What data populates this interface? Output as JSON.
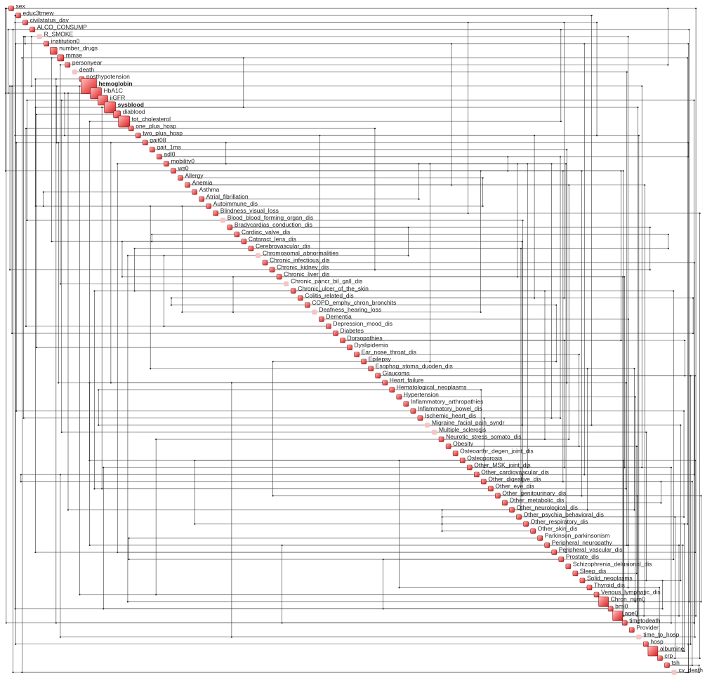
{
  "nodes": [
    {
      "label": "sex"
    },
    {
      "label": "educ3trnew"
    },
    {
      "label": "civilstatus_dav"
    },
    {
      "label": "ALCO_CONSUMP"
    },
    {
      "label": "R_SMOKE"
    },
    {
      "label": "institution0"
    },
    {
      "label": "number_drugs"
    },
    {
      "label": "mmse"
    },
    {
      "label": "personyear"
    },
    {
      "label": "death"
    },
    {
      "label": "posthypotension"
    },
    {
      "label": "hemoglobin"
    },
    {
      "label": "HbA1C"
    },
    {
      "label": "iiGFR"
    },
    {
      "label": "sysblood"
    },
    {
      "label": "diablood"
    },
    {
      "label": "tot_cholesterol"
    },
    {
      "label": "one_plus_hosp"
    },
    {
      "label": "two_plus_hosp"
    },
    {
      "label": "gait08"
    },
    {
      "label": "gait_1ms"
    },
    {
      "label": "adl0"
    },
    {
      "label": "mobility0"
    },
    {
      "label": "ws0"
    },
    {
      "label": "Allergy"
    },
    {
      "label": "Anemia"
    },
    {
      "label": "Asthma"
    },
    {
      "label": "Atrial_fibrillation"
    },
    {
      "label": "Autoimmune_dis"
    },
    {
      "label": "Blindness_visual_loss"
    },
    {
      "label": "Blood_blood_forming_organ_dis"
    },
    {
      "label": "Bradycardias_conduction_dis"
    },
    {
      "label": "Cardiac_valve_dis"
    },
    {
      "label": "Cataract_lens_dis"
    },
    {
      "label": "Cerebrovascular_dis"
    },
    {
      "label": "Chromosomal_abnormalities"
    },
    {
      "label": "Chronic_infectious_dis"
    },
    {
      "label": "Chronic_kidney_dis"
    },
    {
      "label": "Chronic_liver_dis"
    },
    {
      "label": "Chronic_pancr_bil_gall_dis"
    },
    {
      "label": "Chronic_ulcer_of_the_skin"
    },
    {
      "label": "Colitis_related_dis"
    },
    {
      "label": "COPD_emphy_chron_bronchits"
    },
    {
      "label": "Deafness_hearing_loss"
    },
    {
      "label": "Dementia"
    },
    {
      "label": "Depression_mood_dis"
    },
    {
      "label": "Diabetes"
    },
    {
      "label": "Dorsopathies"
    },
    {
      "label": "Dyslipidemia"
    },
    {
      "label": "Ear_nose_throat_dis"
    },
    {
      "label": "Epilepsy"
    },
    {
      "label": "Esophag_stoma_duoden_dis"
    },
    {
      "label": "Glaucoma"
    },
    {
      "label": "Heart_failure"
    },
    {
      "label": "Hematological_neoplasms"
    },
    {
      "label": "Hypertension"
    },
    {
      "label": "Inflammatory_arthropathies"
    },
    {
      "label": "Inflammatory_bowel_dis"
    },
    {
      "label": "Ischemic_heart_dis"
    },
    {
      "label": "Migraine_facial_pain_syndr"
    },
    {
      "label": "Multiple_sclerosis"
    },
    {
      "label": "Neurotic_stress_somato_dis"
    },
    {
      "label": "Obesity"
    },
    {
      "label": "Osteoarthr_degen_joint_dis"
    },
    {
      "label": "Osteoporosis"
    },
    {
      "label": "Other_MSK_joint_dis"
    },
    {
      "label": "Other_cardiovascular_dis"
    },
    {
      "label": "Other_digestive_dis"
    },
    {
      "label": "Other_eye_dis"
    },
    {
      "label": "Other_genitourinary_dis"
    },
    {
      "label": "Other_metabolic_dis"
    },
    {
      "label": "Other_neurological_dis"
    },
    {
      "label": "Other_psychia_behavioral_dis"
    },
    {
      "label": "Other_respiratory_dis"
    },
    {
      "label": "Other_skin_dis"
    },
    {
      "label": "Parkinson_parkinsonism"
    },
    {
      "label": "Peripheral_neuropathy"
    },
    {
      "label": "Peripheral_vascular_dis"
    },
    {
      "label": "Prostate_dis"
    },
    {
      "label": "Schizophrenia_delusional_dis"
    },
    {
      "label": "Sleep_dis"
    },
    {
      "label": "Solid_neoplasms"
    },
    {
      "label": "Thyroid_dis"
    },
    {
      "label": "Venous_lymphatic_dis"
    },
    {
      "label": "Chron_num0"
    },
    {
      "label": "bmi0"
    },
    {
      "label": "age0"
    },
    {
      "label": "timetodeath"
    },
    {
      "label": "Provider"
    },
    {
      "label": "time_to_hosp"
    },
    {
      "label": "hosp"
    },
    {
      "label": "albumine"
    },
    {
      "label": "crp"
    },
    {
      "label": "tsh"
    },
    {
      "label": "cv_death"
    }
  ]
}
